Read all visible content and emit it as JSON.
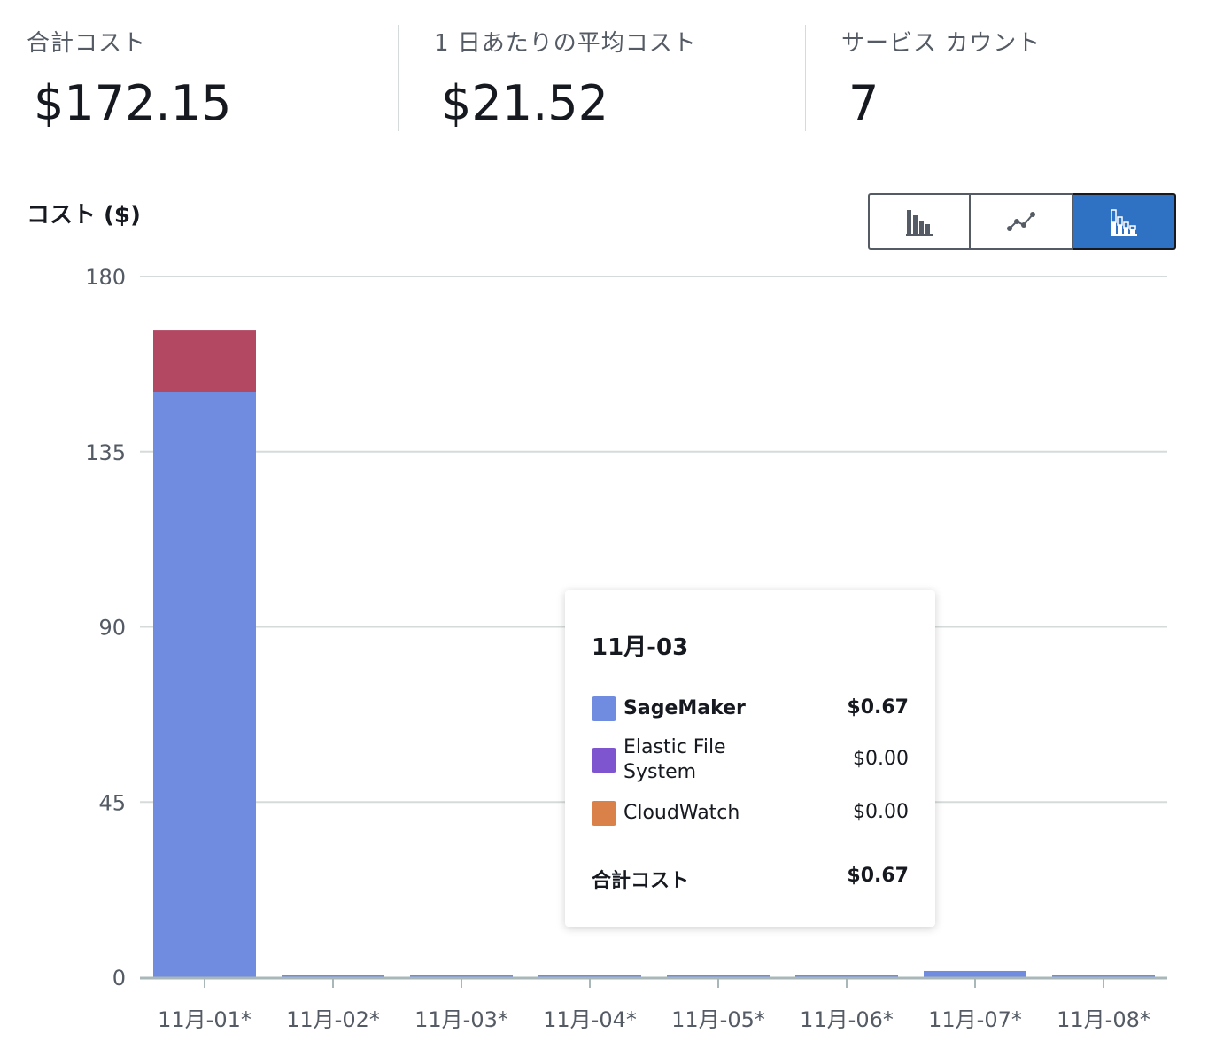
{
  "summary": {
    "metrics": [
      {
        "label": "合計コスト",
        "value": "$172.15"
      },
      {
        "label": "1 日あたりの平均コスト",
        "value": "$21.52"
      },
      {
        "label": "サービス カウント",
        "value": "7"
      }
    ]
  },
  "chart_title": "コスト ($)",
  "chart_types": [
    "bar-chart-icon",
    "line-chart-icon",
    "stacked-bar-chart-icon"
  ],
  "selected_chart_type": "stacked-bar-chart-icon",
  "chart_data": {
    "type": "bar",
    "stacked": true,
    "title": "コスト ($)",
    "categories": [
      "11月-01*",
      "11月-02*",
      "11月-03*",
      "11月-04*",
      "11月-05*",
      "11月-06*",
      "11月-07*",
      "11月-08*"
    ],
    "yticks": [
      "180",
      "135",
      "90",
      "45",
      "0"
    ],
    "ylim": [
      0,
      180
    ],
    "grid": true,
    "series": [
      {
        "name": "SageMaker",
        "color": "#6f8ce0",
        "values": [
          150.2,
          0.67,
          0.67,
          0.67,
          0.67,
          0.6,
          1.6,
          0.67
        ]
      },
      {
        "name": "Elastic File System",
        "color": "#7f54cf",
        "values": [
          0,
          0,
          0,
          0,
          0,
          0,
          0,
          0
        ]
      },
      {
        "name": "CloudWatch",
        "color": "#d98148",
        "values": [
          0,
          0,
          0,
          0,
          0,
          0,
          0,
          0
        ]
      },
      {
        "color": "#b34863",
        "values": [
          15.9,
          0,
          0,
          0,
          0,
          0,
          0,
          0
        ]
      }
    ]
  },
  "tooltip": {
    "title": "11月-03",
    "rows": [
      {
        "name": "SageMaker",
        "value": "$0.67",
        "color": "#6f8ce0",
        "bold": true
      },
      {
        "name": "Elastic File System",
        "value": "$0.00",
        "color": "#7f54cf",
        "bold": false
      },
      {
        "name": "CloudWatch",
        "value": "$0.00",
        "color": "#d98148",
        "bold": false
      }
    ],
    "total_label": "合計コスト",
    "total_value": "$0.67"
  }
}
